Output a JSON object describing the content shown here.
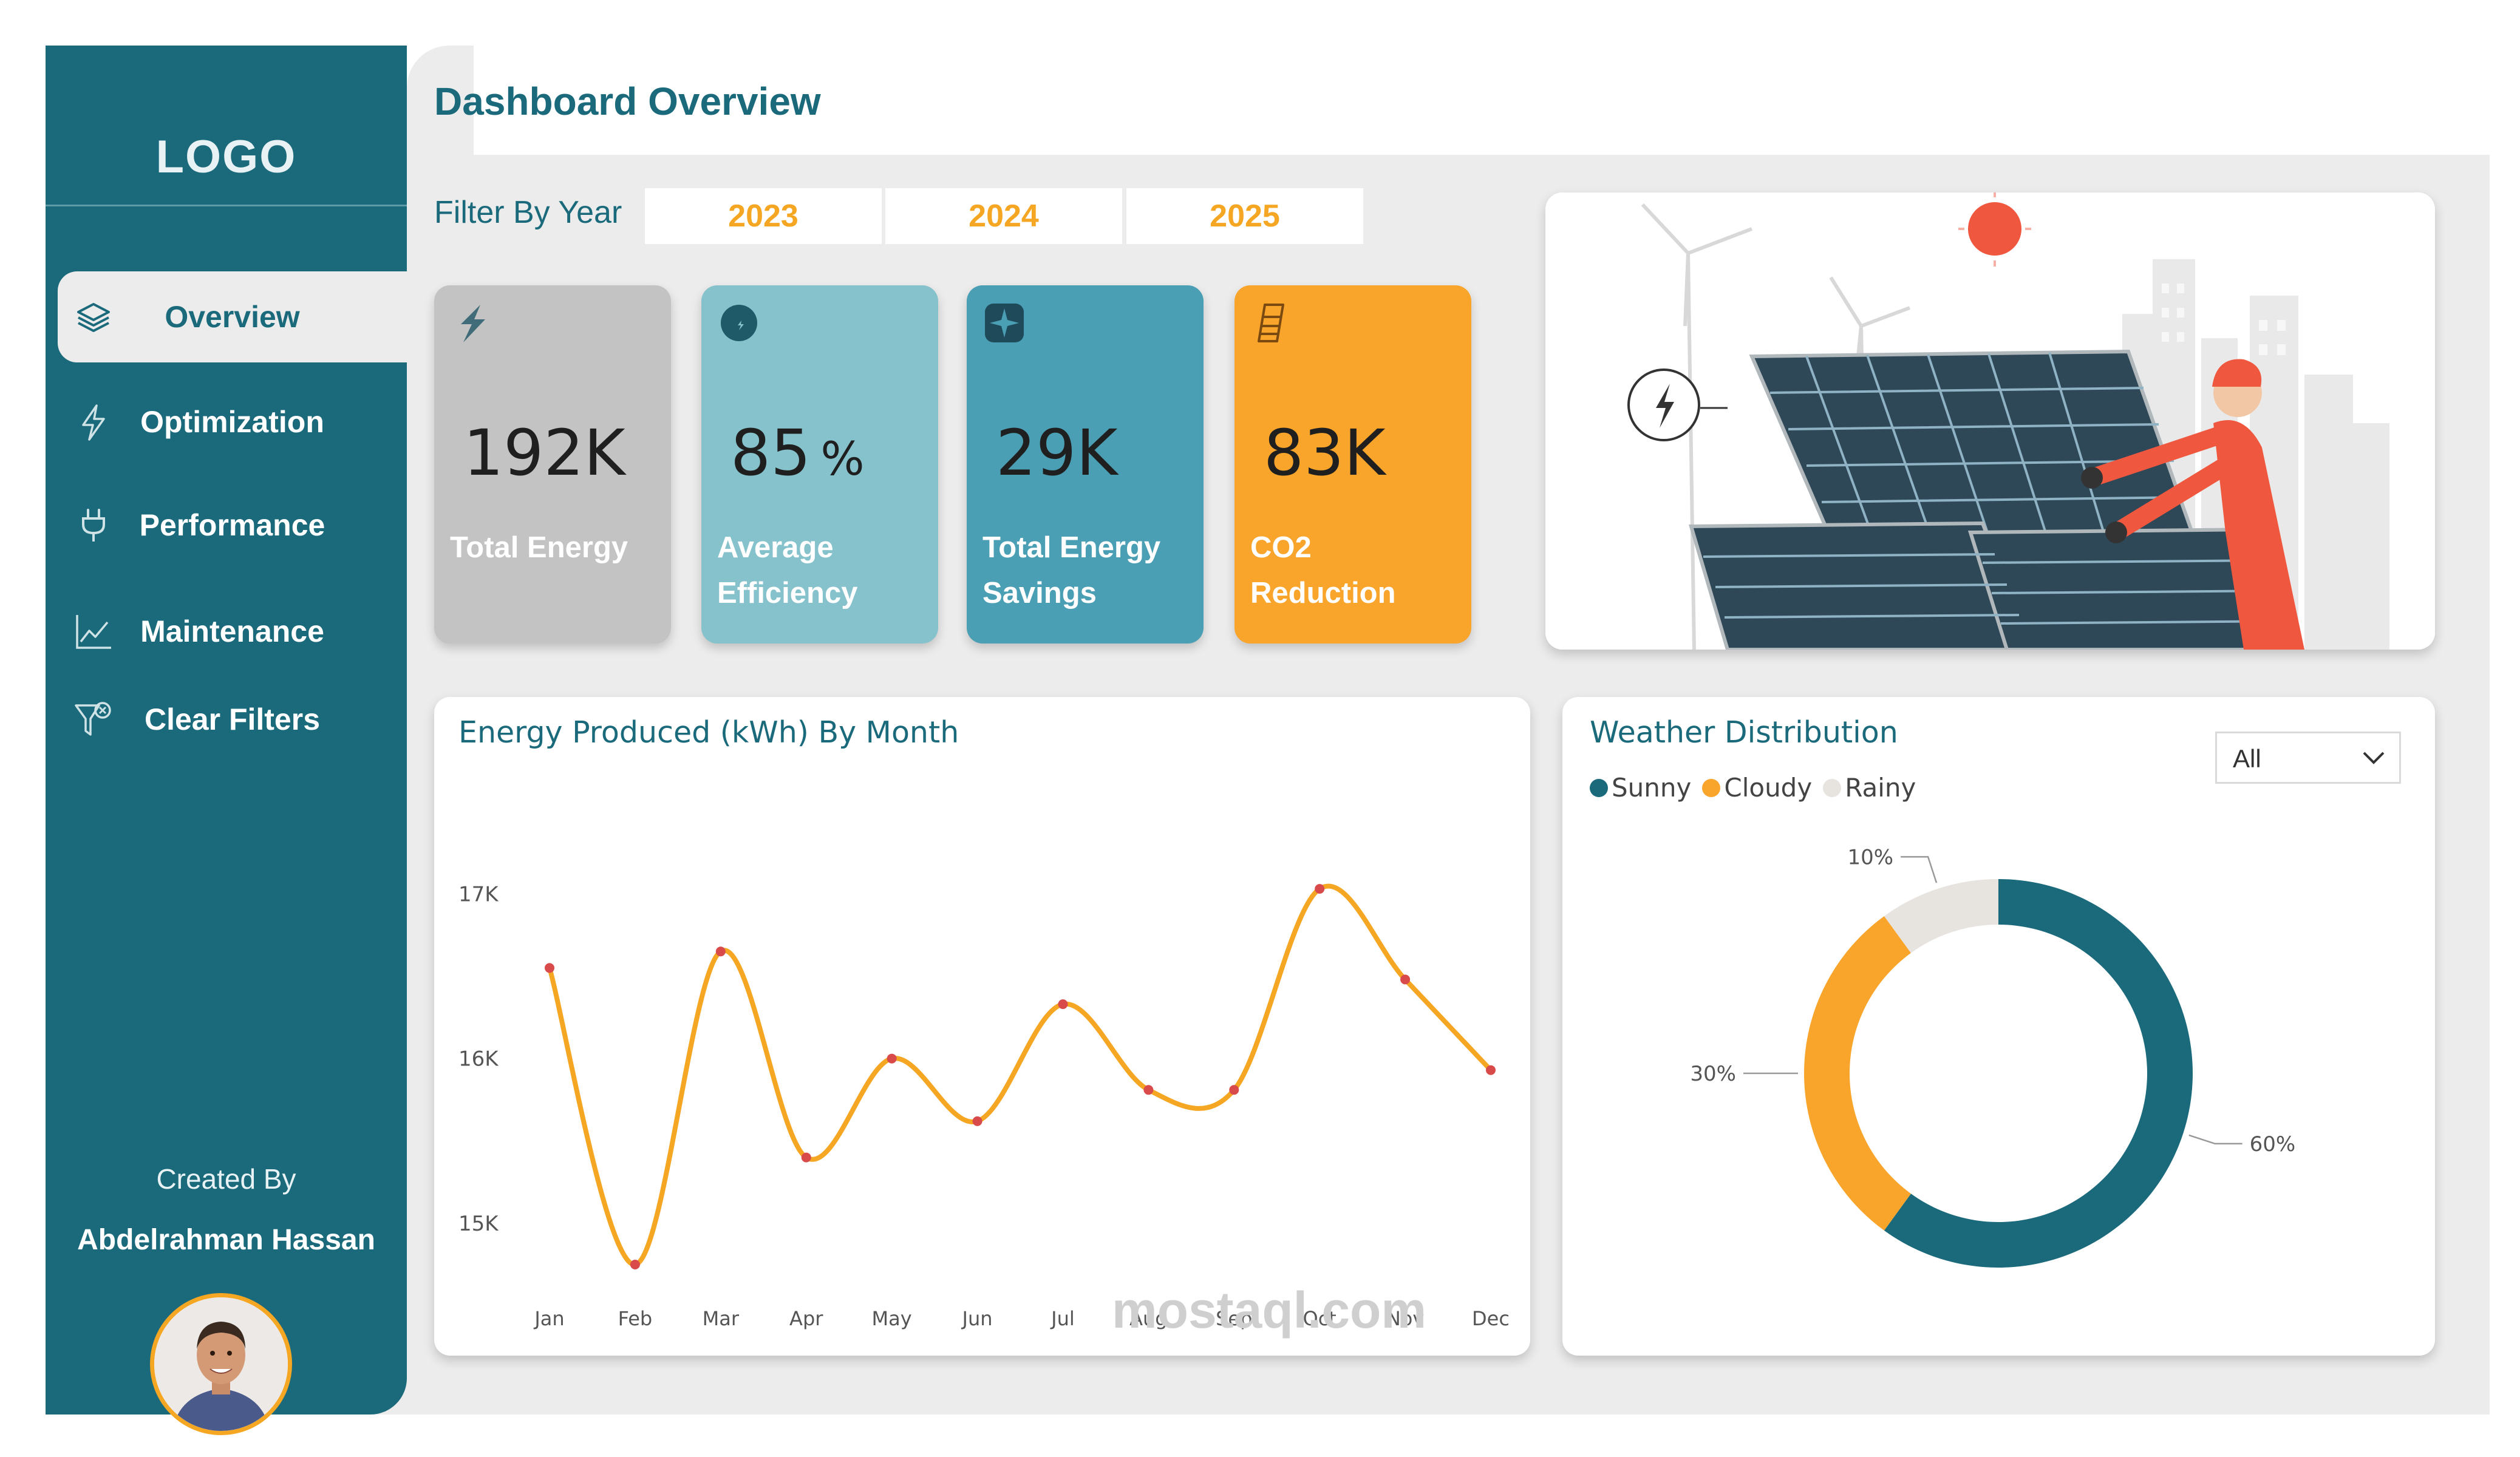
{
  "sidebar": {
    "logo": "LOGO",
    "nav": [
      {
        "label": "Overview",
        "icon": "layers-icon",
        "active": true
      },
      {
        "label": "Optimization",
        "icon": "bolt-icon"
      },
      {
        "label": "Performance",
        "icon": "plug-icon"
      },
      {
        "label": "Maintenance",
        "icon": "line-chart-icon"
      },
      {
        "label": "Clear Filters",
        "icon": "clear-filter-icon"
      }
    ],
    "created_by_label": "Created By",
    "author": "Abdelrahman Hassan"
  },
  "header": {
    "title": "Dashboard Overview"
  },
  "filter": {
    "label": "Filter By Year",
    "years": [
      "2023",
      "2024",
      "2025"
    ]
  },
  "kpis": [
    {
      "value": "192K",
      "label": "Total Energy",
      "color": "#c3c3c3",
      "icon": "bolt-icon"
    },
    {
      "value": "85",
      "unit": "%",
      "label": "Average Efficiency",
      "color": "#85c2cc",
      "icon": "leaf-icon"
    },
    {
      "value": "29K",
      "label": "Total Energy Savings",
      "color": "#4a9fb4",
      "icon": "spark-icon"
    },
    {
      "value": "83K",
      "label": "CO2 Reduction",
      "color": "#f9a42a",
      "icon": "battery-icon"
    }
  ],
  "line_card": {
    "title": "Energy Produced (kWh) By Month"
  },
  "weather_card": {
    "title": "Weather Distribution",
    "dropdown_value": "All",
    "legend": [
      {
        "name": "Sunny",
        "color": "#1a6a7b"
      },
      {
        "name": "Cloudy",
        "color": "#f9a42a"
      },
      {
        "name": "Rainy",
        "color": "#e7e3df"
      }
    ]
  },
  "watermark": {
    "text": "mostaql.com"
  },
  "chart_data": [
    {
      "type": "line",
      "title": "Energy Produced (kWh) By Month",
      "categories": [
        "Jan",
        "Feb",
        "Mar",
        "Apr",
        "May",
        "Jun",
        "Jul",
        "Aug",
        "Sep",
        "Oct",
        "Nov",
        "Dec"
      ],
      "values": [
        16550,
        14750,
        16650,
        15400,
        16000,
        15620,
        16330,
        15810,
        15810,
        17030,
        16480,
        15930
      ],
      "ylim": [
        14750,
        17200
      ],
      "yticks": [
        15000,
        16000,
        17000
      ],
      "ytick_labels": [
        "15K",
        "16K",
        "17K"
      ],
      "line_color": "#f5a623",
      "marker_color": "#d94b4b",
      "xlabel": "",
      "ylabel": ""
    },
    {
      "type": "pie",
      "title": "Weather Distribution",
      "labels": [
        "Sunny",
        "Cloudy",
        "Rainy"
      ],
      "values": [
        60,
        30,
        10
      ],
      "value_labels": [
        "60%",
        "30%",
        "10%"
      ],
      "colors": [
        "#1a6a7b",
        "#f9a42a",
        "#e7e3df"
      ],
      "donut": true
    }
  ]
}
